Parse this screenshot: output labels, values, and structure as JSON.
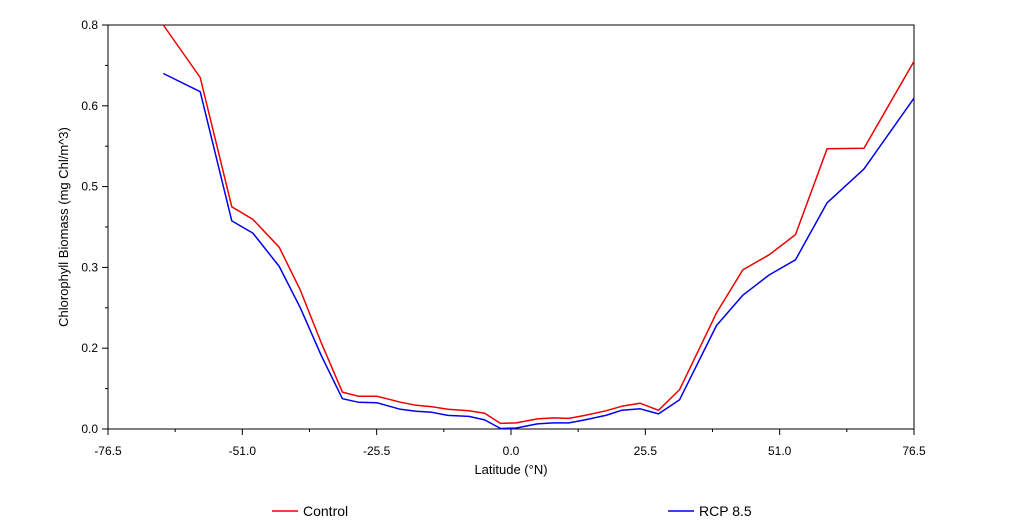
{
  "chart_data": {
    "type": "line",
    "title": "",
    "xlabel": "Latitude (°N)",
    "ylabel": "Chlorophyll Biomass (mg Chl/m^3)",
    "xlim": [
      -76.5,
      76.5
    ],
    "ylim": [
      0.0,
      0.8
    ],
    "xticks": [
      "-76.5",
      "-51.0",
      "-25.5",
      "0.0",
      "25.5",
      "51.0",
      "76.5"
    ],
    "yticks": [
      "0.0",
      "0.2",
      "0.3",
      "0.5",
      "0.6",
      "0.8"
    ],
    "grid": false,
    "legend_position": "bottom",
    "series": [
      {
        "name": "Control",
        "color": "#ee0000",
        "x": [
          -66.0,
          -59.0,
          -53.0,
          -49.0,
          -44.0,
          -40.0,
          -36.0,
          -32.0,
          -29.0,
          -25.5,
          -21.0,
          -18.0,
          -15.0,
          -12.0,
          -8.0,
          -5.0,
          -2.0,
          1.0,
          5.0,
          8.0,
          11.0,
          14.0,
          18.0,
          21.0,
          24.5,
          28.0,
          32.0,
          39.0,
          44.0,
          49.0,
          54.0,
          60.0,
          67.0,
          76.5
        ],
        "y": [
          0.8,
          0.696,
          0.44,
          0.415,
          0.36,
          0.275,
          0.17,
          0.073,
          0.065,
          0.065,
          0.053,
          0.047,
          0.044,
          0.039,
          0.036,
          0.031,
          0.011,
          0.012,
          0.02,
          0.022,
          0.021,
          0.027,
          0.036,
          0.045,
          0.051,
          0.037,
          0.078,
          0.23,
          0.315,
          0.345,
          0.385,
          0.555,
          0.556,
          0.728
        ]
      },
      {
        "name": "RCP 8.5",
        "color": "#0000ee",
        "x": [
          -66.0,
          -59.0,
          -53.0,
          -49.0,
          -44.0,
          -40.0,
          -36.0,
          -32.0,
          -29.0,
          -25.5,
          -21.0,
          -18.0,
          -15.0,
          -12.0,
          -8.0,
          -5.0,
          -2.0,
          1.0,
          5.0,
          8.0,
          11.0,
          14.0,
          18.0,
          21.0,
          24.5,
          28.0,
          32.0,
          39.0,
          44.0,
          49.0,
          54.0,
          60.0,
          67.0,
          76.5
        ],
        "y": [
          0.704,
          0.668,
          0.412,
          0.388,
          0.322,
          0.24,
          0.145,
          0.06,
          0.053,
          0.052,
          0.039,
          0.035,
          0.033,
          0.027,
          0.025,
          0.018,
          0.001,
          0.002,
          0.01,
          0.012,
          0.012,
          0.018,
          0.027,
          0.037,
          0.04,
          0.03,
          0.058,
          0.205,
          0.265,
          0.305,
          0.335,
          0.448,
          0.515,
          0.655
        ]
      }
    ]
  }
}
